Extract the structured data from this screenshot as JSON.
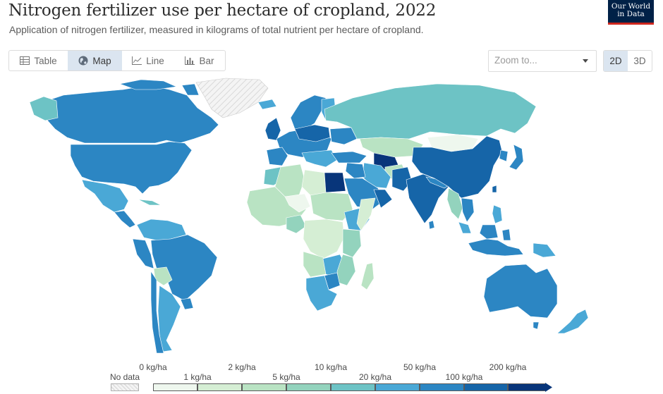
{
  "header": {
    "title": "Nitrogen fertilizer use per hectare of cropland, 2022",
    "subtitle": "Application of nitrogen fertilizer, measured in kilograms of total nutrient per hectare of cropland.",
    "logo_line1": "Our World",
    "logo_line2": "in Data"
  },
  "tabs": [
    {
      "label": "Table",
      "icon": "table-icon"
    },
    {
      "label": "Map",
      "icon": "globe-icon",
      "active": true
    },
    {
      "label": "Line",
      "icon": "line-chart-icon"
    },
    {
      "label": "Bar",
      "icon": "bar-chart-icon"
    }
  ],
  "zoom": {
    "placeholder": "Zoom to...",
    "icon": "chevron-down-icon"
  },
  "view_toggle": {
    "options": [
      "2D",
      "3D"
    ],
    "selected": "2D"
  },
  "legend": {
    "no_data": "No data",
    "thresholds": [
      "0 kg/ha",
      "1 kg/ha",
      "2 kg/ha",
      "5 kg/ha",
      "10 kg/ha",
      "20 kg/ha",
      "50 kg/ha",
      "100 kg/ha",
      "200 kg/ha"
    ],
    "colors": [
      "#eef7ee",
      "#d5eed4",
      "#b9e3c3",
      "#93d3bd",
      "#6dc3c5",
      "#4aa8d6",
      "#2c86c3",
      "#1665a8",
      "#08357a"
    ],
    "no_data_color": "#f2f2f2"
  }
}
